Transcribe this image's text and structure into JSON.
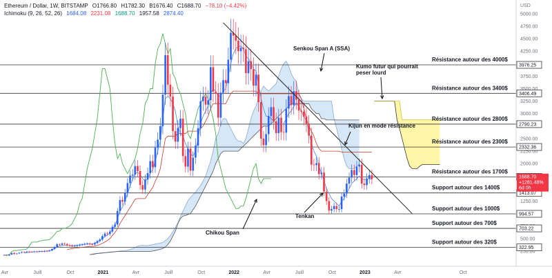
{
  "header": {
    "title": "Ethereum / Dollar, 1W, BITSTAMP",
    "open": "O1766.80",
    "high": "H1782.30",
    "low": "B1676.40",
    "close": "C1688.70",
    "change": "−78.10 (−4.42%)",
    "indicator_name": "Ichimoku (9, 26, 52, 26)",
    "ind_v1": "1684.08",
    "ind_v2": "2231.08",
    "ind_v3": "1688.70",
    "ind_v4": "1957.58",
    "ind_v5": "2874.40"
  },
  "colors": {
    "up": "#2962ff",
    "down": "#f23645",
    "tenkan": "#5b8fd6",
    "kijun": "#c0392b",
    "chikou": "#4caf50",
    "kumo": "#cfe3f7",
    "kumo_future": "#fff59d",
    "level_line": "#333333"
  },
  "chart_data": {
    "type": "candlestick",
    "title": "Ethereum / Dollar, 1W, BITSTAMP",
    "y_axis_label": "USD",
    "ylim": [
      0,
      5300
    ],
    "y_ticks": [
      250,
      500,
      750,
      1000,
      1250,
      1500,
      1750,
      2000,
      2250,
      2500,
      2750,
      3000,
      3250,
      3500,
      3750,
      4000,
      4250,
      4500,
      4750,
      5000
    ],
    "x_ticks": [
      {
        "label": "Avr",
        "bold": false
      },
      {
        "label": "Juill",
        "bold": false
      },
      {
        "label": "Oct",
        "bold": false
      },
      {
        "label": "2021",
        "bold": true
      },
      {
        "label": "Avr",
        "bold": false
      },
      {
        "label": "Juill",
        "bold": false
      },
      {
        "label": "Oct",
        "bold": false
      },
      {
        "label": "2022",
        "bold": true
      },
      {
        "label": "Avr",
        "bold": false
      },
      {
        "label": "Juill",
        "bold": false
      },
      {
        "label": "Oct",
        "bold": false
      },
      {
        "label": "2023",
        "bold": true
      },
      {
        "label": "Avr",
        "bold": false
      },
      {
        "label": "Oct",
        "bold": false
      }
    ],
    "x_tick_weeks": [
      0,
      13,
      26,
      39,
      52,
      65,
      78,
      91,
      104,
      117,
      130,
      143,
      156,
      182
    ],
    "price_levels": [
      {
        "value": 3976.25,
        "label": "Résistance autour des 4000$"
      },
      {
        "value": 3406.49,
        "label": "Résistance autour des 3400$"
      },
      {
        "value": 2790.23,
        "label": "Résistance autour des 2800$"
      },
      {
        "value": 2332.36,
        "label": "Résistance autour des 2300$"
      },
      {
        "value": 1734.3,
        "label": "Résistance autour des 1700$"
      },
      {
        "value": 1413.07,
        "label": "Support autour des 1400$"
      },
      {
        "value": 994.57,
        "label": "Support autour des 1000$"
      },
      {
        "value": 703.22,
        "label": "Support autour des 700$"
      },
      {
        "value": 322.95,
        "label": "Support autour des 320$"
      }
    ],
    "level_badges": [
      "3976.25",
      "3406.49",
      "2790.23",
      "2332.36",
      "1734.30",
      "1413.07",
      "994.57",
      "703.22",
      "322.95"
    ],
    "current_price_badge": [
      "1688.70",
      "+1281.48%",
      "6d 0h"
    ],
    "current_price": 1688.7,
    "annotations": [
      {
        "text": "Senkou Span A (SSA)"
      },
      {
        "text": "Kumo futur qui pourrait"
      },
      {
        "text": "peser lourd"
      },
      {
        "text": "Kijun en mode résistance"
      },
      {
        "text": "Tenkan"
      },
      {
        "text": "Chikou Span"
      }
    ],
    "start_week": 0,
    "closes": [
      170,
      160,
      180,
      210,
      190,
      200,
      215,
      230,
      225,
      240,
      235,
      232,
      240,
      235,
      245,
      238,
      250,
      248,
      260,
      290,
      330,
      385,
      375,
      400,
      390,
      370,
      360,
      345,
      355,
      360,
      375,
      380,
      395,
      400,
      385,
      380,
      410,
      450,
      480,
      550,
      600,
      590,
      640,
      735,
      780,
      1050,
      1270,
      1240,
      1410,
      1610,
      1760,
      1780,
      1950,
      1850,
      1570,
      1480,
      1680,
      1810,
      2050,
      1930,
      2320,
      2480,
      2750,
      3380,
      4170,
      3580,
      3340,
      2650,
      2440,
      2710,
      2900,
      2150,
      1940,
      2300,
      1860,
      2120,
      2360,
      2710,
      3250,
      3340,
      3180,
      3270,
      3930,
      3440,
      3400,
      2920,
      3420,
      3670,
      3610,
      4080,
      4620,
      4560,
      4460,
      4250,
      4320,
      4290,
      3810,
      4050,
      3890,
      3560,
      3780,
      3230,
      2500,
      2370,
      2590,
      2950,
      3130,
      2850,
      2610,
      2920,
      2630,
      2620,
      3100,
      3350,
      3170,
      3450,
      3280,
      3060,
      3040,
      2940,
      2800,
      2560,
      1980,
      1970,
      2010,
      1790,
      1820,
      1440,
      1250,
      1060,
      1090,
      1150,
      1090,
      1090,
      1340,
      1400,
      1600,
      1720,
      1870,
      1770,
      1940,
      1980,
      1600,
      1570,
      1700,
      1770,
      1690
    ],
    "tenkan": [
      null,
      null,
      null,
      null,
      null,
      null,
      null,
      null,
      210,
      218,
      224,
      230,
      235,
      236,
      240,
      242,
      246,
      248,
      255,
      270,
      300,
      330,
      350,
      360,
      365,
      362,
      360,
      358,
      362,
      368,
      372,
      378,
      385,
      390,
      390,
      392,
      410,
      430,
      460,
      500,
      540,
      570,
      610,
      680,
      760,
      900,
      1050,
      1130,
      1260,
      1400,
      1550,
      1680,
      1800,
      1830,
      1780,
      1700,
      1650,
      1700,
      1800,
      1880,
      2050,
      2250,
      2450,
      2900,
      3300,
      3350,
      3300,
      3200,
      3050,
      2750,
      2600,
      2550,
      2400,
      2300,
      2200,
      2150,
      2250,
      2500,
      2800,
      2950,
      3050,
      3150,
      3400,
      3500,
      3450,
      3350,
      3350,
      3450,
      3500,
      3750,
      4000,
      4200,
      4300,
      4350,
      4350,
      4300,
      4150,
      4100,
      4000,
      3900,
      3850,
      3600,
      3300,
      3100,
      2950,
      2950,
      2900,
      2850,
      2800,
      2800,
      2780,
      2800,
      2900,
      3000,
      3050,
      3150,
      3200,
      3150,
      3050,
      2950,
      2850,
      2650,
      2400,
      2250,
      2150,
      1950,
      1800,
      1650,
      1500,
      1400,
      1300,
      1250,
      1200,
      1150,
      1250,
      1300,
      1400,
      1500,
      1600,
      1650,
      1700,
      1750,
      1700,
      1680,
      1690,
      1700,
      1684
    ],
    "kijun": [
      null,
      null,
      null,
      null,
      null,
      null,
      null,
      null,
      null,
      null,
      null,
      null,
      null,
      null,
      null,
      null,
      null,
      null,
      null,
      null,
      null,
      null,
      null,
      null,
      null,
      280,
      290,
      300,
      305,
      310,
      318,
      325,
      330,
      335,
      338,
      340,
      350,
      362,
      380,
      405,
      430,
      460,
      500,
      560,
      620,
      700,
      800,
      880,
      960,
      1040,
      1120,
      1200,
      1290,
      1300,
      1300,
      1300,
      1300,
      1380,
      1450,
      1520,
      1650,
      1750,
      1900,
      2200,
      2500,
      2550,
      2550,
      2550,
      2550,
      2600,
      2600,
      2600,
      2600,
      2650,
      2650,
      2650,
      2650,
      2650,
      2700,
      2750,
      2850,
      2950,
      3100,
      3200,
      3200,
      3200,
      3200,
      3200,
      3200,
      3300,
      3400,
      3450,
      3450,
      3450,
      3450,
      3450,
      3450,
      3450,
      3450,
      3450,
      3450,
      3400,
      3400,
      3400,
      3400,
      3400,
      3400,
      3400,
      3400,
      3400,
      3400,
      3400,
      3400,
      3400,
      3400,
      3400,
      3400,
      3400,
      3300,
      3100,
      2900,
      2750,
      2650,
      2550,
      2400,
      2300,
      2250,
      2250,
      2250,
      2250,
      2250,
      2250,
      2250,
      2250,
      2231,
      2231,
      2231,
      2231,
      2231,
      2231,
      2231,
      2231,
      2231,
      2231,
      2231,
      2231,
      2231
    ],
    "chikou": [
      170,
      170,
      175,
      240,
      260,
      260,
      270,
      275,
      280,
      290,
      350,
      430,
      430,
      430,
      450,
      460,
      470,
      470,
      480,
      520,
      580,
      640,
      650,
      700,
      700,
      720,
      750,
      800,
      900,
      1000,
      1200,
      1300,
      1600,
      1900,
      2100,
      2300,
      2600,
      2900,
      3400,
      3900,
      3900,
      3700,
      3500,
      2900,
      2400,
      2100,
      2200,
      2000,
      1900,
      1800,
      1900,
      2000,
      2100,
      2300,
      2600,
      2800,
      3200,
      3300,
      3500,
      3500,
      4000,
      4300,
      4400,
      4600,
      4400,
      4200,
      4300,
      3800,
      3700,
      3500,
      3400,
      3200,
      3000,
      2600,
      2500,
      2700,
      2900,
      3100,
      3200,
      3300,
      3400,
      3300,
      3100,
      2900,
      2600,
      2100,
      1900,
      1700,
      1500,
      1400,
      1300,
      1200,
      1100,
      1100,
      1150,
      1150,
      1300,
      1500,
      1700,
      1900,
      2000,
      1700,
      1600,
      1700,
      1700,
      1700,
      1700
    ],
    "ssa": [
      null,
      null,
      null,
      null,
      null,
      null,
      null,
      null,
      null,
      null,
      null,
      null,
      null,
      null,
      null,
      null,
      null,
      null,
      null,
      null,
      null,
      null,
      null,
      null,
      null,
      null,
      null,
      null,
      null,
      null,
      null,
      null,
      null,
      null,
      180,
      190,
      200,
      205,
      210,
      215,
      220,
      225,
      230,
      235,
      240,
      245,
      250,
      255,
      260,
      265,
      280,
      300,
      320,
      345,
      360,
      365,
      360,
      360,
      370,
      380,
      390,
      400,
      410,
      420,
      460,
      500,
      560,
      640,
      720,
      820,
      940,
      1050,
      1150,
      1260,
      1320,
      1380,
      1430,
      1500,
      1560,
      1650,
      1750,
      1900,
      2050,
      2250,
      2500,
      2600,
      2800,
      2900,
      2900,
      2800,
      2700,
      2600,
      2500,
      2450,
      2450,
      2400,
      2500,
      2700,
      2900,
      3050,
      3150,
      3300,
      3450,
      3550,
      3500,
      3450,
      3500,
      3550,
      3600,
      3750,
      3900,
      4000,
      4050,
      3950,
      3800,
      3700,
      3650,
      3400,
      3300,
      3250,
      3250,
      3250,
      3250,
      3250,
      3250,
      3250,
      3250,
      3250,
      3250,
      3250,
      3250,
      2900,
      2700,
      2500,
      2300,
      2100,
      1950,
      1900,
      1900,
      1900,
      1950,
      1980
    ],
    "ssb": [
      null,
      null,
      null,
      null,
      null,
      null,
      null,
      null,
      null,
      null,
      null,
      null,
      null,
      null,
      null,
      null,
      null,
      null,
      null,
      null,
      null,
      null,
      null,
      null,
      null,
      null,
      null,
      null,
      null,
      null,
      null,
      null,
      null,
      null,
      180,
      180,
      190,
      200,
      205,
      210,
      215,
      220,
      225,
      230,
      235,
      240,
      240,
      240,
      240,
      240,
      240,
      240,
      240,
      240,
      240,
      240,
      240,
      240,
      240,
      250,
      260,
      270,
      285,
      300,
      330,
      380,
      450,
      550,
      650,
      800,
      900,
      950,
      960,
      980,
      1000,
      1080,
      1150,
      1250,
      1350,
      1450,
      1550,
      1650,
      1750,
      1850,
      2000,
      2100,
      2200,
      2250,
      2250,
      2250,
      2250,
      2250,
      2250,
      2250,
      2300,
      2350,
      2400,
      2450,
      2500,
      2550,
      2600,
      2650,
      2700,
      2750,
      2750,
      2750,
      2800,
      2850,
      2900,
      2950,
      3000,
      3050,
      3100,
      3150,
      3200,
      3200,
      3200,
      3200,
      3200,
      3200,
      3200,
      3200,
      3100,
      3050,
      3000,
      3000,
      2900,
      2900,
      2874,
      2874,
      2874,
      2874,
      2874,
      2874,
      2874,
      2874,
      2874,
      2874,
      2874,
      2874,
      2874,
      2874
    ],
    "future_kumo_top": [
      3250,
      3250,
      3250,
      3250,
      3250,
      3250,
      3250,
      3250,
      3250,
      3250,
      3250,
      2874,
      2874,
      2874,
      2874,
      2874,
      2874,
      2874,
      2874,
      2874,
      2874,
      2874,
      2874,
      2874,
      2874,
      2874,
      2874
    ],
    "future_kumo_bottom": [
      3250,
      3250,
      3250,
      3250,
      3250,
      3250,
      3250,
      3250,
      3250,
      2874,
      2700,
      2500,
      2300,
      2100,
      1950,
      1900,
      1900,
      1900,
      1950,
      1980,
      1980,
      1980,
      1980,
      1980,
      1980,
      1980,
      1980
    ]
  }
}
